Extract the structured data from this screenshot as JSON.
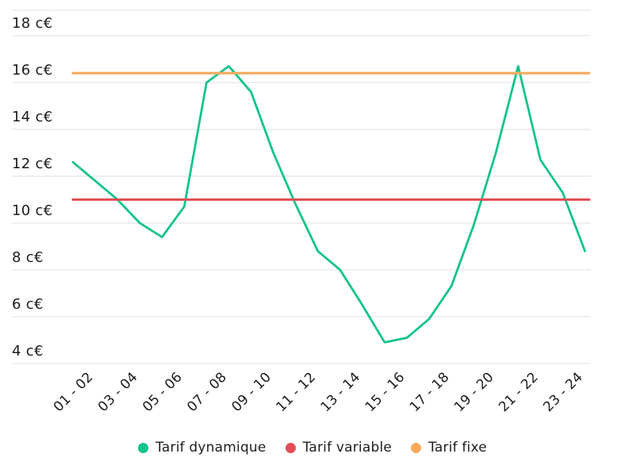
{
  "page": {
    "background": "#ffffff",
    "text_color": "#1c1c1c",
    "grid_color": "#e5e5e5"
  },
  "chart_data": {
    "type": "line",
    "title": "",
    "y_axis": {
      "unit": "c€",
      "tick_values": [
        18,
        16,
        14,
        12,
        10,
        8,
        6,
        4
      ],
      "tick_labels": [
        "18 c€",
        "16 c€",
        "14 c€",
        "12 c€",
        "10 c€",
        "8 c€",
        "6 c€",
        "4 c€"
      ],
      "min": 4,
      "max": 18,
      "grid": true
    },
    "x_axis": {
      "tick_labels": [
        "01 - 02",
        "03 - 04",
        "05 - 06",
        "07 - 08",
        "09 - 10",
        "11 - 12",
        "13 - 14",
        "15 - 16",
        "17 - 18",
        "19 - 20",
        "21 - 22",
        "23 - 24"
      ],
      "hourly_points": 24,
      "points_per_label": 2
    },
    "series": [
      {
        "name": "Tarif dynamique",
        "type": "line",
        "color": "#14c38a",
        "values": [
          12.6,
          11.8,
          11.0,
          10.0,
          9.4,
          10.7,
          16.0,
          16.7,
          15.6,
          13.0,
          10.8,
          8.8,
          8.0,
          6.5,
          4.9,
          5.1,
          5.9,
          7.3,
          9.9,
          13.0,
          16.7,
          12.7,
          11.3,
          8.8
        ]
      },
      {
        "name": "Tarif variable",
        "type": "hline",
        "color": "#e24f55",
        "value": 11.0
      },
      {
        "name": "Tarif fixe",
        "type": "hline",
        "color": "#f9a95e",
        "value": 16.4
      }
    ],
    "legend": {
      "position": "bottom",
      "items": [
        {
          "label": "Tarif dynamique",
          "color": "#14c38a"
        },
        {
          "label": "Tarif variable",
          "color": "#e24f55"
        },
        {
          "label": "Tarif fixe",
          "color": "#f9a95e"
        }
      ]
    }
  }
}
